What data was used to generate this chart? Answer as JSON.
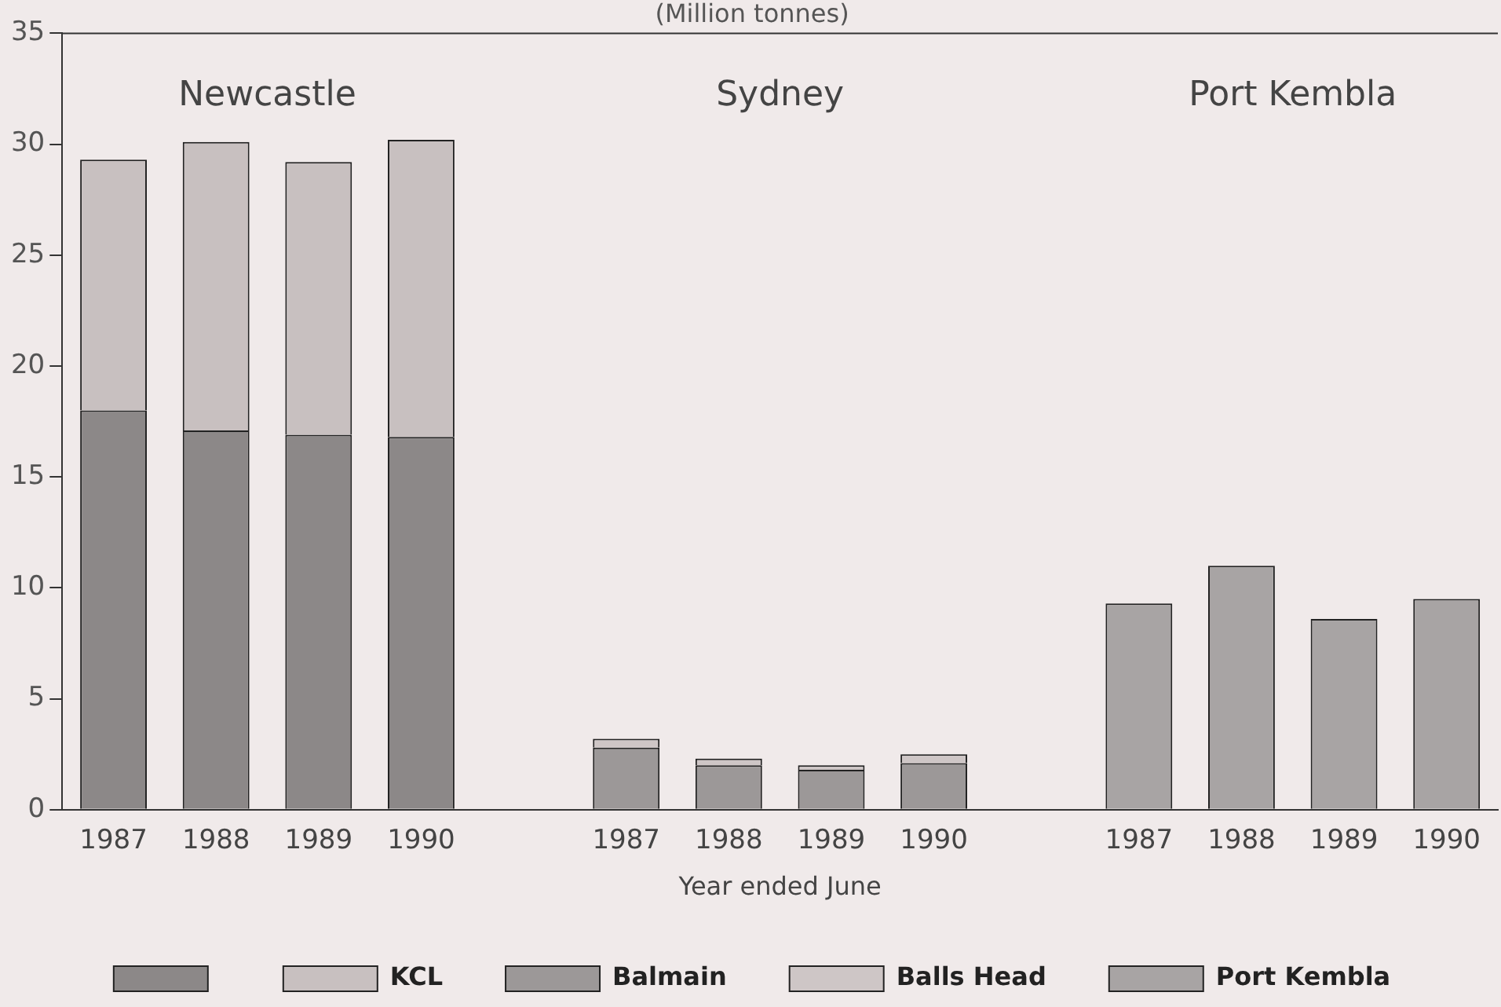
{
  "chart_data": {
    "type": "bar",
    "title": "(Million tonnes)",
    "xlabel": "Year ended June",
    "stacked": true,
    "categories": [
      "1987",
      "1988",
      "1989",
      "1990",
      null,
      "1987",
      "1988",
      "1989",
      "1990",
      null,
      "1987",
      "1988",
      "1989",
      "1990"
    ],
    "series": [
      {
        "color": "#8c8888",
        "values": [
          18.0,
          17.1,
          16.9,
          16.8,
          null,
          null,
          null,
          null,
          null,
          null,
          null,
          null,
          null,
          null
        ]
      },
      {
        "name": "KCL",
        "color": "#c8c0c0",
        "values": [
          11.3,
          13.0,
          12.3,
          13.4,
          null,
          null,
          null,
          null,
          null,
          null,
          null,
          null,
          null,
          null
        ]
      },
      {
        "name": "Balmain",
        "color": "#9c9898",
        "values": [
          null,
          null,
          null,
          null,
          null,
          2.8,
          2.0,
          1.8,
          2.1,
          null,
          null,
          null,
          null,
          null
        ]
      },
      {
        "name": "Balls Head",
        "color": "#cec6c6",
        "values": [
          null,
          null,
          null,
          null,
          null,
          0.4,
          0.3,
          0.2,
          0.4,
          null,
          null,
          null,
          null,
          null
        ]
      },
      {
        "name": "Port Kembla",
        "color": "#a8a4a4",
        "values": [
          null,
          null,
          null,
          null,
          null,
          null,
          null,
          null,
          null,
          null,
          9.3,
          11.0,
          8.6,
          9.5
        ]
      }
    ],
    "ylim": [
      0,
      35
    ],
    "yticks": [
      0,
      5,
      10,
      15,
      20,
      25,
      30,
      35
    ],
    "grid": false,
    "legend": "bottom",
    "annotations": [
      "Newcastle",
      "Sydney",
      "Port Kembla"
    ]
  }
}
